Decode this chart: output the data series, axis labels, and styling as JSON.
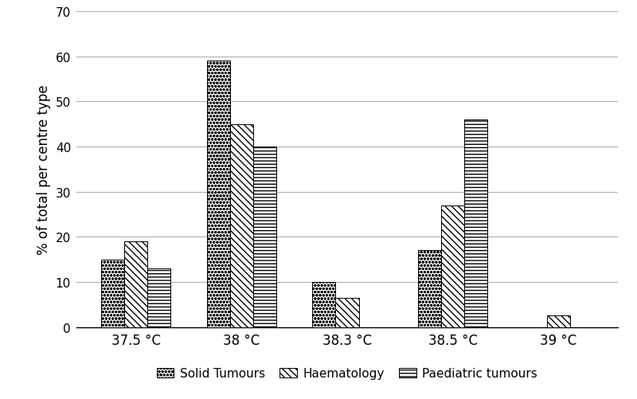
{
  "categories": [
    "37.5 °C",
    "38 °C",
    "38.3 °C",
    "38.5 °C",
    "39 °C"
  ],
  "series": {
    "Solid Tumours": [
      15,
      59,
      10,
      17,
      0
    ],
    "Haematology": [
      19,
      45,
      6.5,
      27,
      2.5
    ],
    "Paediatric tumours": [
      13,
      40,
      0,
      46,
      0
    ]
  },
  "ylabel": "% of total per centre type",
  "ylim": [
    0,
    70
  ],
  "yticks": [
    0,
    10,
    20,
    30,
    40,
    50,
    60,
    70
  ],
  "bar_width": 0.22,
  "background_color": "#ffffff",
  "grid_color": "#b0b0b0",
  "legend_labels": [
    "Solid Tumours",
    "Haematology",
    "Paediatric tumours"
  ],
  "hatch_patterns": [
    "oooo",
    "\\\\\\\\",
    "----"
  ],
  "bar_edge_color": "#000000",
  "bar_face_color": "#ffffff",
  "figsize": [
    8.0,
    5.02
  ],
  "dpi": 100
}
